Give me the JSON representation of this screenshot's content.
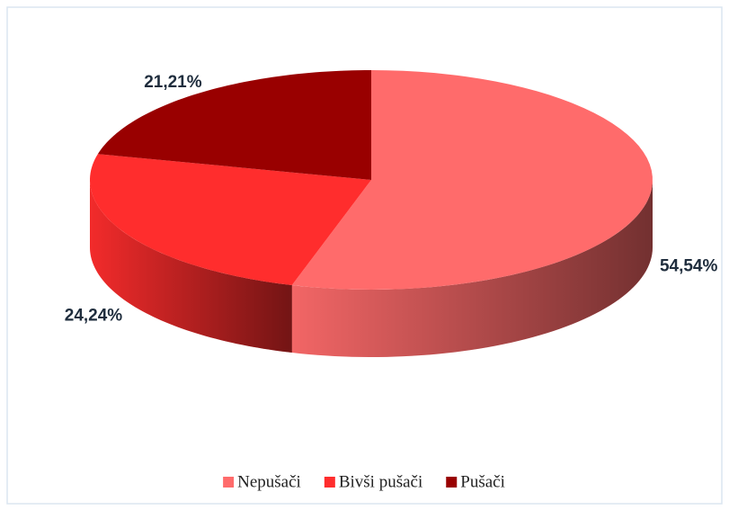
{
  "chart_data": {
    "type": "pie",
    "categories": [
      "Nepušači",
      "Bivši pušači",
      "Pušači"
    ],
    "values": [
      54.54,
      24.24,
      21.21
    ],
    "value_labels": [
      "54,54%",
      "24,24%",
      "21,21%"
    ],
    "colors": [
      "#ff6b6b",
      "#ff2d2d",
      "#990000"
    ],
    "legend": "bottom"
  }
}
